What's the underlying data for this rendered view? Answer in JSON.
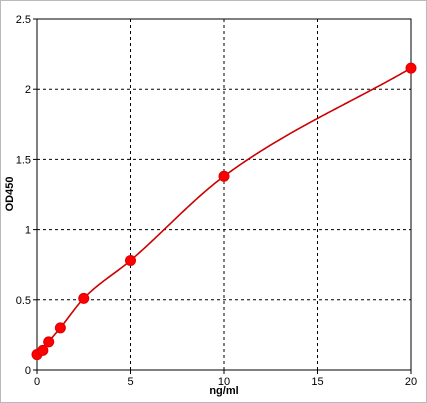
{
  "chart_data": {
    "type": "scatter",
    "title": "",
    "xlabel": "ng/ml",
    "ylabel": "OD450",
    "xlim": [
      0,
      20
    ],
    "ylim": [
      0,
      2.5
    ],
    "grid": true,
    "x_ticks": [
      "0",
      "5",
      "10",
      "15",
      "20"
    ],
    "y_ticks": [
      "0",
      "0.5",
      "1",
      "1.5",
      "2",
      "2.5"
    ],
    "series": [
      {
        "points": [
          {
            "x": 0,
            "y": 0.11
          },
          {
            "x": 0.313,
            "y": 0.14
          },
          {
            "x": 0.625,
            "y": 0.2
          },
          {
            "x": 1.25,
            "y": 0.3
          },
          {
            "x": 2.5,
            "y": 0.51
          },
          {
            "x": 5,
            "y": 0.78
          },
          {
            "x": 10,
            "y": 1.38
          },
          {
            "x": 20,
            "y": 2.15
          }
        ],
        "fit_curve": true
      }
    ],
    "colors": {
      "series": "#ff0000",
      "curve": "#cc0000",
      "grid": "#000000",
      "background": "#ffffff"
    }
  }
}
